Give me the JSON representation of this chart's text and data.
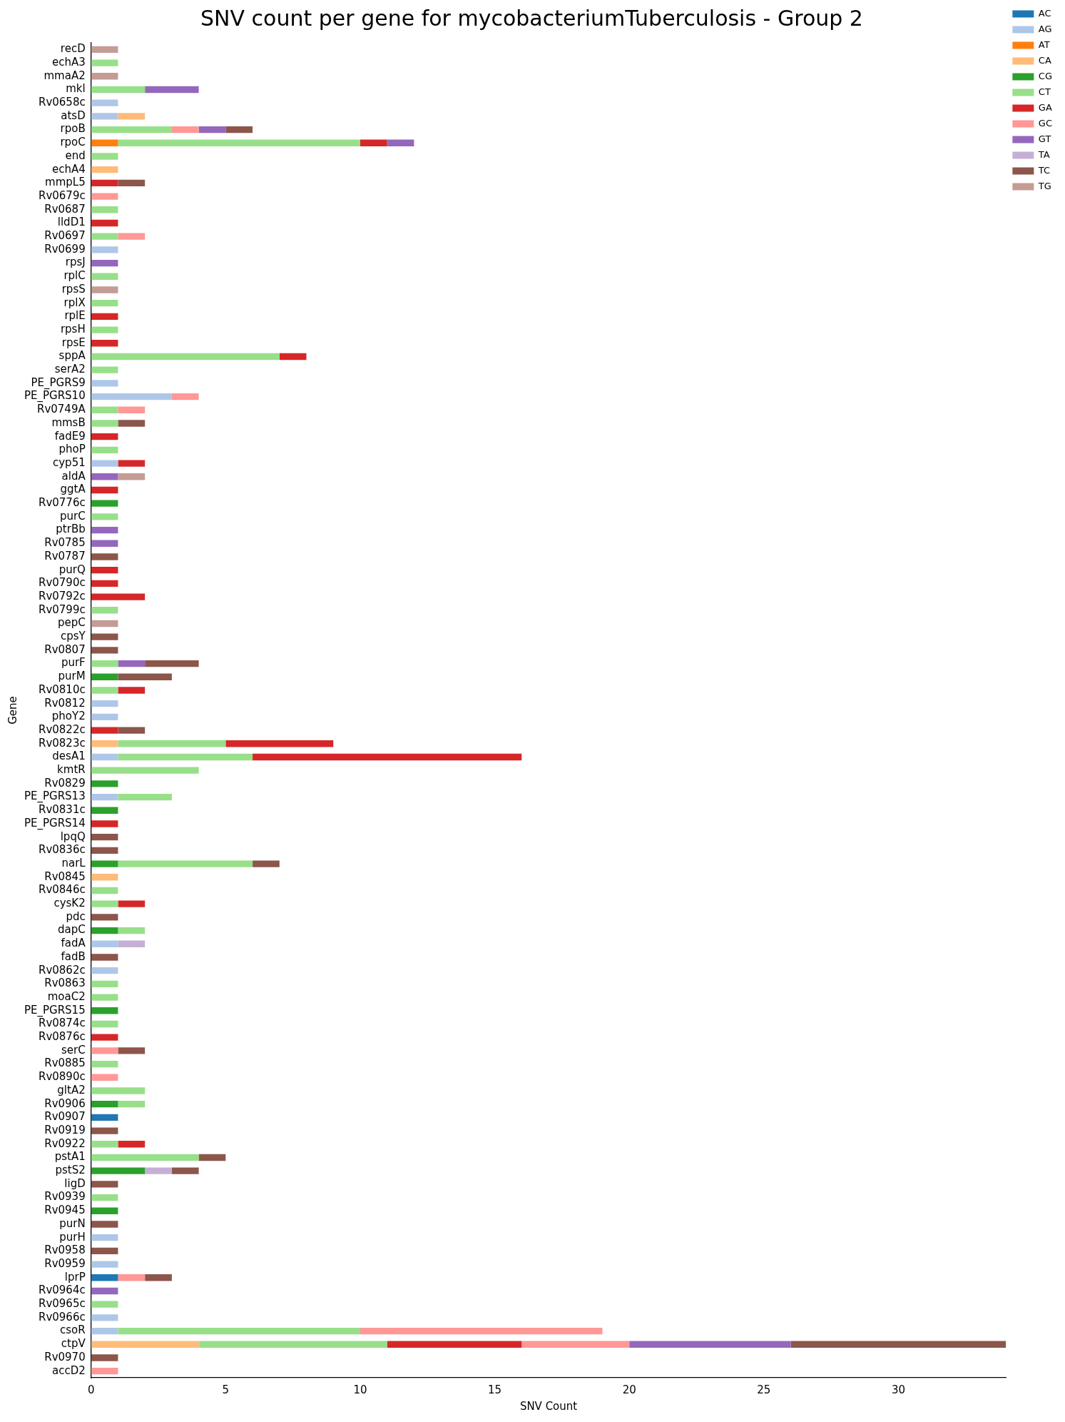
{
  "chart_data": {
    "type": "bar",
    "orientation": "horizontal",
    "stacked": true,
    "title": "SNV count per gene for mycobacteriumTuberculosis - Group 2",
    "xlabel": "SNV Count",
    "ylabel": "Gene",
    "categories": [
      "recD",
      "echA3",
      "mmaA2",
      "mkl",
      "Rv0658c",
      "atsD",
      "rpoB",
      "rpoC",
      "end",
      "echA4",
      "mmpL5",
      "Rv0679c",
      "Rv0687",
      "lldD1",
      "Rv0697",
      "Rv0699",
      "rpsJ",
      "rplC",
      "rpsS",
      "rplX",
      "rplE",
      "rpsH",
      "rpsE",
      "sppA",
      "serA2",
      "PE_PGRS9",
      "PE_PGRS10",
      "Rv0749A",
      "mmsB",
      "fadE9",
      "phoP",
      "cyp51",
      "aldA",
      "ggtA",
      "Rv0776c",
      "purC",
      "ptrBb",
      "Rv0785",
      "Rv0787",
      "purQ",
      "Rv0790c",
      "Rv0792c",
      "Rv0799c",
      "pepC",
      "cpsY",
      "Rv0807",
      "purF",
      "purM",
      "Rv0810c",
      "Rv0812",
      "phoY2",
      "Rv0822c",
      "Rv0823c",
      "desA1",
      "kmtR",
      "Rv0829",
      "PE_PGRS13",
      "Rv0831c",
      "PE_PGRS14",
      "lpqQ",
      "Rv0836c",
      "narL",
      "Rv0845",
      "Rv0846c",
      "cysK2",
      "pdc",
      "dapC",
      "fadA",
      "fadB",
      "Rv0862c",
      "Rv0863",
      "moaC2",
      "PE_PGRS15",
      "Rv0874c",
      "Rv0876c",
      "serC",
      "Rv0885",
      "Rv0890c",
      "gltA2",
      "Rv0906",
      "Rv0907",
      "Rv0919",
      "Rv0922",
      "pstA1",
      "pstS2",
      "ligD",
      "Rv0939",
      "Rv0945",
      "purN",
      "purH",
      "Rv0958",
      "Rv0959",
      "lprP",
      "Rv0964c",
      "Rv0965c",
      "Rv0966c",
      "csoR",
      "ctpV",
      "Rv0970",
      "accD2"
    ],
    "series": [
      {
        "name": "AC",
        "color": "#1f77b4",
        "values": [
          null,
          null,
          null,
          null,
          null,
          null,
          null,
          null,
          null,
          null,
          null,
          null,
          null,
          null,
          null,
          null,
          null,
          null,
          null,
          null,
          null,
          null,
          null,
          null,
          null,
          null,
          null,
          null,
          null,
          null,
          null,
          null,
          null,
          null,
          null,
          null,
          null,
          null,
          null,
          null,
          null,
          null,
          null,
          null,
          null,
          null,
          null,
          null,
          null,
          null,
          null,
          null,
          null,
          null,
          null,
          null,
          null,
          null,
          null,
          null,
          null,
          null,
          null,
          null,
          null,
          null,
          null,
          null,
          null,
          null,
          null,
          null,
          null,
          null,
          null,
          null,
          null,
          null,
          null,
          null,
          1,
          null,
          null,
          null,
          null,
          null,
          null,
          null,
          null,
          null,
          null,
          null,
          1,
          null,
          null,
          null,
          null,
          null,
          null,
          null
        ]
      },
      {
        "name": "AG",
        "color": "#aec7e8",
        "values": [
          null,
          null,
          null,
          null,
          1,
          1,
          null,
          null,
          null,
          null,
          null,
          null,
          null,
          null,
          null,
          1,
          null,
          null,
          null,
          null,
          null,
          null,
          null,
          null,
          null,
          1,
          3,
          null,
          null,
          null,
          null,
          1,
          null,
          null,
          null,
          null,
          null,
          null,
          null,
          null,
          null,
          null,
          null,
          null,
          null,
          null,
          null,
          null,
          null,
          1,
          1,
          null,
          null,
          1,
          null,
          null,
          1,
          null,
          null,
          null,
          null,
          null,
          null,
          null,
          null,
          null,
          null,
          1,
          null,
          1,
          null,
          null,
          null,
          null,
          null,
          null,
          null,
          null,
          null,
          null,
          null,
          null,
          null,
          null,
          null,
          null,
          null,
          null,
          null,
          1,
          null,
          1,
          null,
          null,
          null,
          1,
          1,
          null,
          null,
          null
        ]
      },
      {
        "name": "AT",
        "color": "#ff7f0e",
        "values": [
          null,
          null,
          null,
          null,
          null,
          null,
          null,
          1,
          null,
          null,
          null,
          null,
          null,
          null,
          null,
          null,
          null,
          null,
          null,
          null,
          null,
          null,
          null,
          null,
          null,
          null,
          null,
          null,
          null,
          null,
          null,
          null,
          null,
          null,
          null,
          null,
          null,
          null,
          null,
          null,
          null,
          null,
          null,
          null,
          null,
          null,
          null,
          null,
          null,
          null,
          null,
          null,
          null,
          null,
          null,
          null,
          null,
          null,
          null,
          null,
          null,
          null,
          null,
          null,
          null,
          null,
          null,
          null,
          null,
          null,
          null,
          null,
          null,
          null,
          null,
          null,
          null,
          null,
          null,
          null,
          null,
          null,
          null,
          null,
          null,
          null,
          null,
          null,
          null,
          null,
          null,
          null,
          null,
          null,
          null,
          null,
          null,
          null,
          null,
          null
        ]
      },
      {
        "name": "CA",
        "color": "#ffbb78",
        "values": [
          null,
          null,
          null,
          null,
          null,
          1,
          null,
          null,
          null,
          1,
          null,
          null,
          null,
          null,
          null,
          null,
          null,
          null,
          null,
          null,
          null,
          null,
          null,
          null,
          null,
          null,
          null,
          null,
          null,
          null,
          null,
          null,
          null,
          null,
          null,
          null,
          null,
          null,
          null,
          null,
          null,
          null,
          null,
          null,
          null,
          null,
          null,
          null,
          null,
          null,
          null,
          null,
          1,
          null,
          null,
          null,
          null,
          null,
          null,
          null,
          null,
          null,
          1,
          null,
          null,
          null,
          null,
          null,
          null,
          null,
          null,
          null,
          null,
          null,
          null,
          null,
          null,
          null,
          null,
          null,
          null,
          null,
          null,
          null,
          null,
          null,
          null,
          null,
          null,
          null,
          null,
          null,
          null,
          null,
          null,
          null,
          null,
          4,
          null,
          null
        ]
      },
      {
        "name": "CG",
        "color": "#2ca02c",
        "values": [
          null,
          null,
          null,
          null,
          null,
          null,
          null,
          null,
          null,
          null,
          null,
          null,
          null,
          null,
          null,
          null,
          null,
          null,
          null,
          null,
          null,
          null,
          null,
          null,
          null,
          null,
          null,
          null,
          null,
          null,
          null,
          null,
          null,
          null,
          1,
          null,
          null,
          null,
          null,
          null,
          null,
          null,
          null,
          null,
          null,
          null,
          null,
          1,
          null,
          null,
          null,
          null,
          null,
          null,
          null,
          1,
          null,
          1,
          null,
          null,
          null,
          1,
          null,
          null,
          null,
          null,
          1,
          null,
          null,
          null,
          null,
          null,
          1,
          null,
          null,
          null,
          null,
          null,
          null,
          1,
          null,
          null,
          null,
          null,
          2,
          null,
          null,
          1,
          null,
          null,
          null,
          null,
          null,
          null,
          null,
          null,
          null,
          null,
          null,
          null
        ]
      },
      {
        "name": "CT",
        "color": "#98df8a",
        "values": [
          null,
          1,
          null,
          2,
          null,
          null,
          3,
          9,
          1,
          null,
          null,
          null,
          1,
          null,
          1,
          null,
          null,
          1,
          null,
          1,
          null,
          1,
          null,
          7,
          1,
          null,
          null,
          1,
          1,
          null,
          1,
          null,
          null,
          null,
          null,
          1,
          null,
          null,
          null,
          null,
          null,
          null,
          1,
          null,
          null,
          null,
          1,
          null,
          1,
          null,
          null,
          null,
          4,
          5,
          4,
          null,
          2,
          null,
          null,
          null,
          null,
          5,
          null,
          1,
          1,
          null,
          1,
          null,
          null,
          null,
          1,
          1,
          null,
          1,
          null,
          null,
          1,
          null,
          2,
          1,
          null,
          null,
          1,
          4,
          null,
          null,
          1,
          null,
          null,
          null,
          null,
          null,
          null,
          null,
          1,
          null,
          9,
          7,
          null,
          null
        ]
      },
      {
        "name": "GA",
        "color": "#d62728",
        "values": [
          null,
          null,
          null,
          null,
          null,
          null,
          null,
          1,
          null,
          null,
          1,
          null,
          null,
          1,
          null,
          null,
          null,
          null,
          null,
          null,
          1,
          null,
          1,
          1,
          null,
          null,
          null,
          null,
          null,
          1,
          null,
          1,
          null,
          1,
          null,
          null,
          null,
          null,
          null,
          1,
          1,
          2,
          null,
          null,
          null,
          null,
          null,
          null,
          1,
          null,
          null,
          1,
          4,
          10,
          null,
          null,
          null,
          null,
          1,
          null,
          null,
          null,
          null,
          null,
          1,
          null,
          null,
          null,
          null,
          null,
          null,
          null,
          null,
          null,
          1,
          null,
          null,
          null,
          null,
          null,
          null,
          null,
          1,
          null,
          null,
          null,
          null,
          null,
          null,
          null,
          null,
          null,
          null,
          null,
          null,
          null,
          null,
          5,
          null,
          null
        ]
      },
      {
        "name": "GC",
        "color": "#ff9896",
        "values": [
          null,
          null,
          null,
          null,
          null,
          null,
          1,
          null,
          null,
          null,
          null,
          1,
          null,
          null,
          1,
          null,
          null,
          null,
          null,
          null,
          null,
          null,
          null,
          null,
          null,
          null,
          1,
          1,
          null,
          null,
          null,
          null,
          null,
          null,
          null,
          null,
          null,
          null,
          null,
          null,
          null,
          null,
          null,
          null,
          null,
          null,
          null,
          null,
          null,
          null,
          null,
          null,
          null,
          null,
          null,
          null,
          null,
          null,
          null,
          null,
          null,
          null,
          null,
          null,
          null,
          null,
          null,
          null,
          null,
          null,
          null,
          null,
          null,
          null,
          null,
          1,
          null,
          1,
          null,
          null,
          null,
          null,
          null,
          null,
          null,
          null,
          null,
          null,
          null,
          null,
          null,
          null,
          1,
          null,
          null,
          null,
          9,
          4,
          null,
          1
        ]
      },
      {
        "name": "GT",
        "color": "#9467bd",
        "values": [
          null,
          null,
          null,
          2,
          null,
          null,
          1,
          1,
          null,
          null,
          null,
          null,
          null,
          null,
          null,
          null,
          1,
          null,
          null,
          null,
          null,
          null,
          null,
          null,
          null,
          null,
          null,
          null,
          null,
          null,
          null,
          null,
          1,
          null,
          null,
          null,
          1,
          1,
          null,
          null,
          null,
          null,
          null,
          null,
          null,
          null,
          1,
          null,
          null,
          null,
          null,
          null,
          null,
          null,
          null,
          null,
          null,
          null,
          null,
          null,
          null,
          null,
          null,
          null,
          null,
          null,
          null,
          null,
          null,
          null,
          null,
          null,
          null,
          null,
          null,
          null,
          null,
          null,
          null,
          null,
          null,
          null,
          null,
          null,
          null,
          null,
          null,
          null,
          null,
          null,
          null,
          null,
          null,
          1,
          null,
          null,
          null,
          6,
          null,
          null
        ]
      },
      {
        "name": "TA",
        "color": "#c5b0d5",
        "values": [
          null,
          null,
          null,
          null,
          null,
          null,
          null,
          null,
          null,
          null,
          null,
          null,
          null,
          null,
          null,
          null,
          null,
          null,
          null,
          null,
          null,
          null,
          null,
          null,
          null,
          null,
          null,
          null,
          null,
          null,
          null,
          null,
          null,
          null,
          null,
          null,
          null,
          null,
          null,
          null,
          null,
          null,
          null,
          null,
          null,
          null,
          null,
          null,
          null,
          null,
          null,
          null,
          null,
          null,
          null,
          null,
          null,
          null,
          null,
          null,
          null,
          null,
          null,
          null,
          null,
          null,
          null,
          1,
          null,
          null,
          null,
          null,
          null,
          null,
          null,
          null,
          null,
          null,
          null,
          null,
          null,
          null,
          null,
          null,
          1,
          null,
          null,
          null,
          null,
          null,
          null,
          null,
          null,
          null,
          null,
          null,
          null,
          null,
          null,
          null
        ]
      },
      {
        "name": "TC",
        "color": "#8c564b",
        "values": [
          null,
          null,
          null,
          null,
          null,
          null,
          1,
          null,
          null,
          null,
          1,
          null,
          null,
          null,
          null,
          null,
          null,
          null,
          null,
          null,
          null,
          null,
          null,
          null,
          null,
          null,
          null,
          null,
          1,
          null,
          null,
          null,
          null,
          null,
          null,
          null,
          null,
          null,
          1,
          null,
          null,
          null,
          null,
          null,
          1,
          1,
          2,
          2,
          null,
          null,
          null,
          1,
          null,
          null,
          null,
          null,
          null,
          null,
          null,
          1,
          1,
          1,
          null,
          null,
          null,
          1,
          null,
          null,
          1,
          null,
          null,
          null,
          null,
          null,
          null,
          1,
          null,
          null,
          null,
          null,
          null,
          1,
          null,
          1,
          1,
          1,
          null,
          null,
          1,
          null,
          1,
          null,
          1,
          null,
          null,
          null,
          null,
          8,
          1,
          null
        ]
      },
      {
        "name": "TG",
        "color": "#c49c94",
        "values": [
          1,
          null,
          1,
          null,
          null,
          null,
          null,
          null,
          null,
          null,
          null,
          null,
          null,
          null,
          null,
          null,
          null,
          null,
          1,
          null,
          null,
          null,
          null,
          null,
          null,
          null,
          null,
          null,
          null,
          null,
          null,
          null,
          1,
          null,
          null,
          null,
          null,
          null,
          null,
          null,
          null,
          null,
          null,
          1,
          null,
          null,
          null,
          null,
          null,
          null,
          null,
          null,
          null,
          null,
          null,
          null,
          null,
          null,
          null,
          null,
          null,
          null,
          null,
          null,
          null,
          null,
          null,
          null,
          null,
          null,
          null,
          null,
          null,
          null,
          null,
          null,
          null,
          null,
          null,
          null,
          null,
          null,
          null,
          null,
          null,
          null,
          null,
          null,
          null,
          null,
          null,
          null,
          null,
          null,
          null,
          null,
          null,
          null,
          null,
          null
        ]
      }
    ],
    "xlim": [
      0,
      34
    ],
    "xticks": [
      0,
      5,
      10,
      15,
      20,
      25,
      30
    ],
    "grid": false,
    "legend": "top right"
  }
}
